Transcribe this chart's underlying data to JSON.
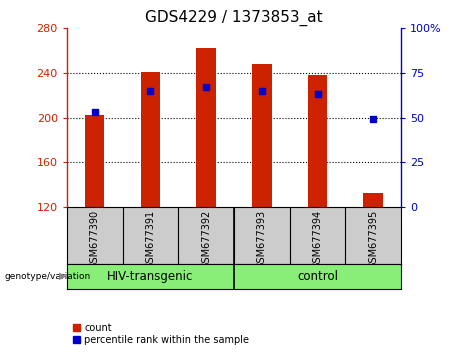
{
  "title": "GDS4229 / 1373853_at",
  "categories": [
    "GSM677390",
    "GSM677391",
    "GSM677392",
    "GSM677393",
    "GSM677394",
    "GSM677395"
  ],
  "bar_values": [
    202,
    241,
    262,
    248,
    238,
    133
  ],
  "bar_bottom": 120,
  "percentile_values": [
    53,
    65,
    67,
    65,
    63,
    49
  ],
  "left_ylim": [
    120,
    280
  ],
  "right_ylim": [
    0,
    100
  ],
  "left_yticks": [
    120,
    160,
    200,
    240,
    280
  ],
  "right_yticks": [
    0,
    25,
    50,
    75,
    100
  ],
  "left_yticklabels": [
    "120",
    "160",
    "200",
    "240",
    "280"
  ],
  "right_yticklabels": [
    "0",
    "25",
    "50",
    "75",
    "100%"
  ],
  "bar_color": "#cc2200",
  "marker_color": "#0000cc",
  "group_labels": [
    "HIV-transgenic",
    "control"
  ],
  "group_bg_color": "#88ee77",
  "tick_area_color": "#cccccc",
  "bottom_label": "genotype/variation",
  "legend_count_label": "count",
  "legend_pct_label": "percentile rank within the sample",
  "title_fontsize": 11,
  "tick_fontsize": 8,
  "xtick_fontsize": 7,
  "group_fontsize": 8.5
}
